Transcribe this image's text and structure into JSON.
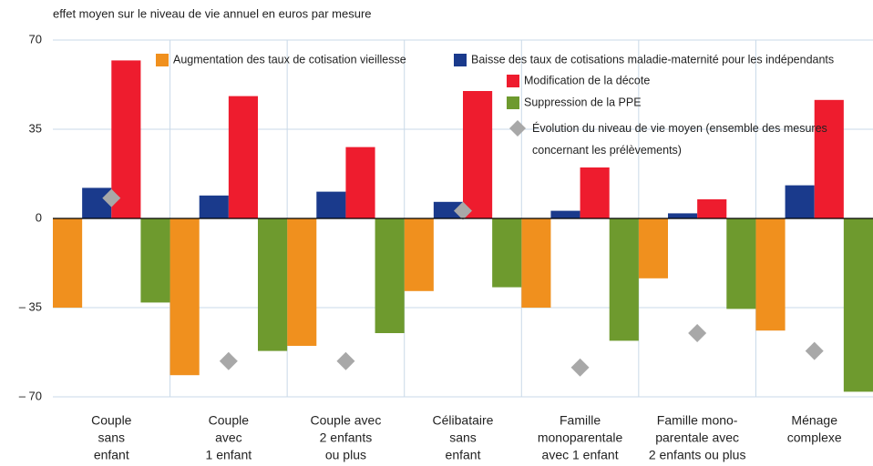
{
  "chart_data": {
    "type": "bar",
    "title": "effet moyen sur le niveau de vie annuel en euros par mesure",
    "categories": [
      [
        "Couple",
        "sans",
        "enfant"
      ],
      [
        "Couple",
        "avec",
        "1 enfant"
      ],
      [
        "Couple avec",
        "2 enfants",
        "ou plus"
      ],
      [
        "Célibataire",
        "sans",
        "enfant"
      ],
      [
        "Famille",
        "monoparentale",
        "avec 1 enfant"
      ],
      [
        "Famille mono-",
        "parentale avec",
        "2 enfants ou plus"
      ],
      [
        "Ménage",
        "complexe"
      ]
    ],
    "series": [
      {
        "name": "Augmentation des taux de cotisation vieillesse",
        "color": "#f0901e",
        "values": [
          -35,
          -61.5,
          -50,
          -28.5,
          -35,
          -23.5,
          -44
        ]
      },
      {
        "name": "Baisse des taux de cotisations maladie-maternité pour les indépendants",
        "color": "#1a3a8c",
        "values": [
          12,
          9,
          10.5,
          6.5,
          3,
          2,
          13
        ]
      },
      {
        "name": "Modification de la décote",
        "color": "#ee1c2e",
        "values": [
          62,
          48,
          28,
          50,
          20,
          7.5,
          46.5
        ]
      },
      {
        "name": "Suppression de la PPE",
        "color": "#6e9a2e",
        "values": [
          -33,
          -52,
          -45,
          -27,
          -48,
          -35.5,
          -68
        ]
      },
      {
        "name": "Évolution du niveau de vie moyen (ensemble des mesures concernant les prélèvements)",
        "color": "#a8a8a8",
        "type": "scatter",
        "values": [
          8,
          -56,
          -56,
          3,
          -58.5,
          -45,
          -52
        ]
      }
    ],
    "ylim": [
      -70,
      70
    ],
    "yticks": [
      {
        "value": -70,
        "label": "– 70"
      },
      {
        "value": -35,
        "label": "– 35"
      },
      0,
      35,
      70
    ],
    "grid": true
  }
}
